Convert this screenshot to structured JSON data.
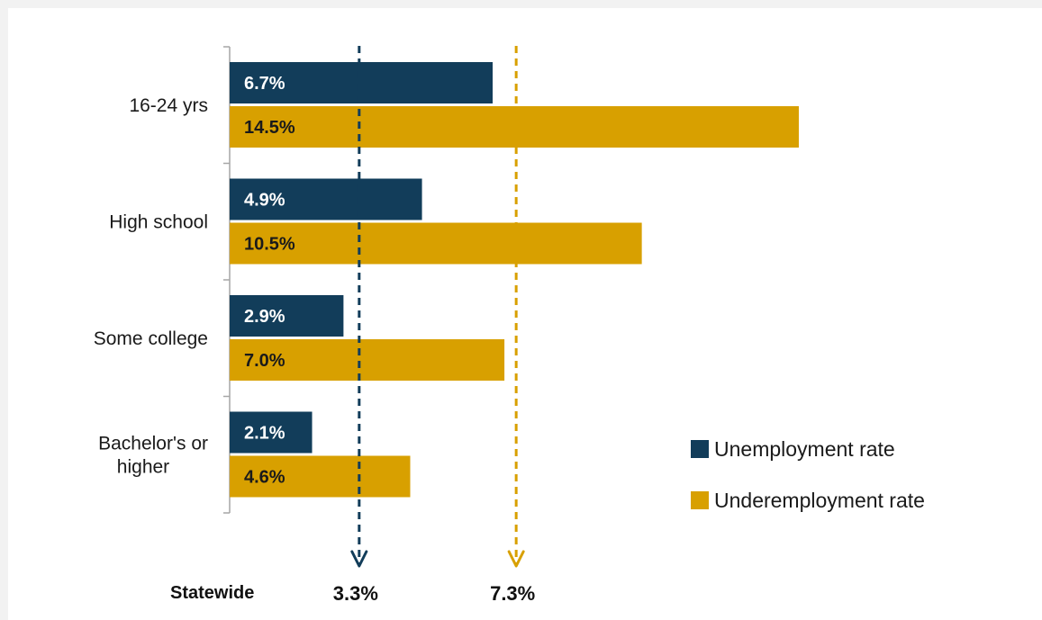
{
  "chart_data": {
    "type": "bar",
    "orientation": "horizontal",
    "categories": [
      "16-24 yrs",
      "High school",
      "Some college",
      "Bachelor's or higher"
    ],
    "category_lines": [
      [
        "16-24 yrs"
      ],
      [
        "High school"
      ],
      [
        "Some college"
      ],
      [
        "Bachelor's or",
        "higher"
      ]
    ],
    "series": [
      {
        "name": "Unemployment rate",
        "color": "#123d5a",
        "label_color": "#ffffff",
        "values": [
          6.7,
          4.9,
          2.9,
          2.1
        ],
        "labels": [
          "6.7%",
          "4.9%",
          "2.9%",
          "2.1%"
        ]
      },
      {
        "name": "Underemployment rate",
        "color": "#d8a000",
        "label_color": "#1a1a1a",
        "values": [
          14.5,
          10.5,
          7.0,
          4.6
        ],
        "labels": [
          "14.5%",
          "10.5%",
          "7.0%",
          "4.6%"
        ]
      }
    ],
    "xlim": [
      0,
      17.3
    ],
    "grid": false,
    "legend": "bottom-right",
    "reference_lines": [
      {
        "series": "Unemployment rate",
        "value": 3.3,
        "label": "3.3%",
        "color": "#123d5a"
      },
      {
        "series": "Underemployment rate",
        "value": 7.3,
        "label": "7.3%",
        "color": "#d8a000"
      }
    ],
    "reference_caption": "Statewide"
  }
}
